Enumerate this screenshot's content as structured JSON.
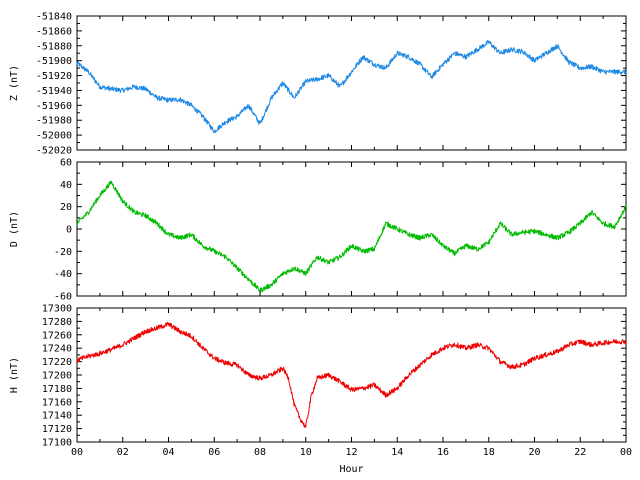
{
  "chart_data": {
    "type": "line",
    "x_tick_labels": [
      "00",
      "02",
      "04",
      "06",
      "08",
      "10",
      "12",
      "14",
      "16",
      "18",
      "20",
      "22",
      "00"
    ],
    "xlabel": "Hour",
    "xlim": [
      0,
      24
    ],
    "grid": false,
    "panels": [
      {
        "name": "Z",
        "ylabel": "Z (nT)",
        "color": "#1e88e5",
        "ylim": [
          -52020,
          -51840
        ],
        "yticks": [
          -51840,
          -51860,
          -51880,
          -51900,
          -51920,
          -51940,
          -51960,
          -51980,
          -52000,
          -52020
        ],
        "x": [
          0,
          0.5,
          1,
          1.5,
          2,
          2.5,
          3,
          3.5,
          4,
          4.5,
          5,
          5.5,
          6,
          6.5,
          7,
          7.5,
          8,
          8.5,
          9,
          9.5,
          10,
          10.5,
          11,
          11.5,
          12,
          12.5,
          13,
          13.5,
          14,
          14.5,
          15,
          15.5,
          16,
          16.5,
          17,
          17.5,
          18,
          18.5,
          19,
          19.5,
          20,
          20.5,
          21,
          21.5,
          22,
          22.5,
          23,
          23.5,
          24
        ],
        "values": [
          -51903,
          -51915,
          -51935,
          -51938,
          -51940,
          -51935,
          -51938,
          -51950,
          -51953,
          -51952,
          -51960,
          -51975,
          -51995,
          -51982,
          -51975,
          -51960,
          -51985,
          -51950,
          -51930,
          -51950,
          -51928,
          -51925,
          -51920,
          -51935,
          -51915,
          -51895,
          -51905,
          -51910,
          -51890,
          -51895,
          -51905,
          -51922,
          -51905,
          -51890,
          -51895,
          -51885,
          -51875,
          -51890,
          -51885,
          -51888,
          -51900,
          -51890,
          -51880,
          -51902,
          -51910,
          -51908,
          -51915,
          -51915,
          -51915
        ]
      },
      {
        "name": "D",
        "ylabel": "D (nT)",
        "color": "#00bb00",
        "ylim": [
          -60,
          60
        ],
        "yticks": [
          60,
          40,
          20,
          0,
          -20,
          -40,
          -60
        ],
        "x": [
          0,
          0.5,
          1,
          1.5,
          2,
          2.5,
          3,
          3.5,
          4,
          4.5,
          5,
          5.5,
          6,
          6.5,
          7,
          7.5,
          8,
          8.5,
          9,
          9.5,
          10,
          10.5,
          11,
          11.5,
          12,
          12.5,
          13,
          13.5,
          14,
          14.5,
          15,
          15.5,
          16,
          16.5,
          17,
          17.5,
          18,
          18.5,
          19,
          19.5,
          20,
          20.5,
          21,
          21.5,
          22,
          22.5,
          23,
          23.5,
          24
        ],
        "values": [
          5,
          15,
          30,
          42,
          25,
          15,
          12,
          5,
          -5,
          -8,
          -5,
          -15,
          -20,
          -25,
          -35,
          -45,
          -55,
          -50,
          -40,
          -35,
          -40,
          -25,
          -30,
          -25,
          -15,
          -20,
          -18,
          5,
          0,
          -5,
          -8,
          -5,
          -15,
          -22,
          -15,
          -18,
          -12,
          5,
          -5,
          -3,
          -2,
          -5,
          -8,
          -3,
          5,
          15,
          5,
          2,
          20
        ]
      },
      {
        "name": "H",
        "ylabel": "H (nT)",
        "color": "#ee0000",
        "ylim": [
          17100,
          17300
        ],
        "yticks": [
          17300,
          17280,
          17260,
          17240,
          17220,
          17200,
          17180,
          17160,
          17140,
          17120,
          17100
        ],
        "x": [
          0,
          0.5,
          1,
          1.5,
          2,
          2.5,
          3,
          3.5,
          4,
          4.5,
          5,
          5.5,
          6,
          6.5,
          7,
          7.5,
          8,
          8.5,
          9,
          9.25,
          9.5,
          9.75,
          10,
          10.25,
          10.5,
          11,
          11.5,
          12,
          12.5,
          13,
          13.5,
          14,
          14.5,
          15,
          15.5,
          16,
          16.5,
          17,
          17.5,
          18,
          18.5,
          19,
          19.5,
          20,
          20.5,
          21,
          21.5,
          22,
          22.5,
          23,
          23.5,
          24
        ],
        "values": [
          17222,
          17228,
          17232,
          17238,
          17245,
          17255,
          17265,
          17270,
          17276,
          17265,
          17258,
          17240,
          17225,
          17218,
          17215,
          17200,
          17195,
          17200,
          17210,
          17195,
          17155,
          17135,
          17122,
          17170,
          17195,
          17200,
          17190,
          17178,
          17180,
          17185,
          17170,
          17180,
          17200,
          17215,
          17230,
          17240,
          17246,
          17240,
          17245,
          17240,
          17220,
          17212,
          17215,
          17225,
          17230,
          17235,
          17245,
          17250,
          17245,
          17248,
          17250,
          17250
        ]
      }
    ]
  }
}
